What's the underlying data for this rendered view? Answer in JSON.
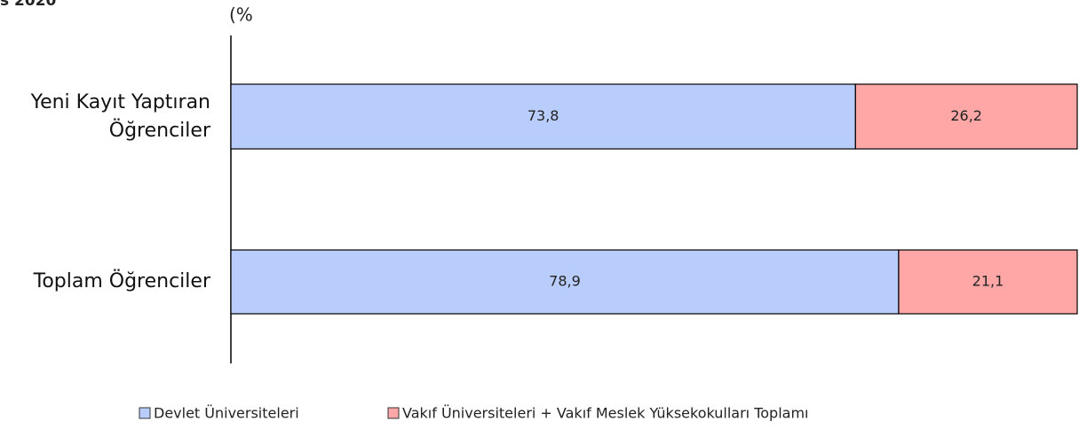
{
  "chart_data": {
    "type": "stacked_barh",
    "title": "s 2020",
    "xlabel": "(%",
    "categories": [
      "Yeni Kayıt Yaptıran Öğrenciler",
      "Toplam Öğrenciler"
    ],
    "series": [
      {
        "name": "Devlet Üniversiteleri",
        "color": "#b9cdfc",
        "values": [
          73.8,
          78.9
        ],
        "value_labels": [
          "73,8",
          "78,9"
        ]
      },
      {
        "name": "Vakıf Üniversiteleri + Vakıf Meslek Yüksekokulları Toplamı",
        "color": "#ffa6a6",
        "values": [
          26.2,
          21.1
        ],
        "value_labels": [
          "26,2",
          "21,1"
        ]
      }
    ],
    "xlim": [
      0,
      100
    ]
  }
}
